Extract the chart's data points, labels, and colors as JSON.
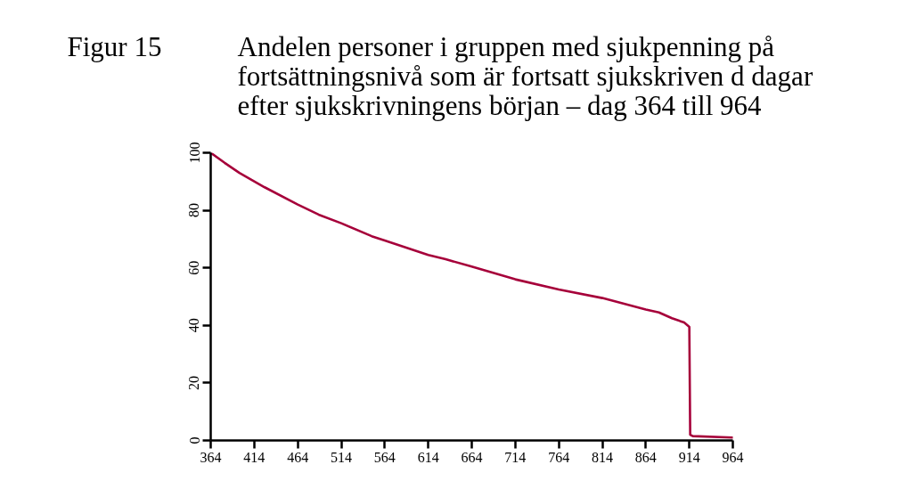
{
  "chart_data": {
    "type": "line",
    "title": "Andelen personer i gruppen med sjukpenning på fortsättningsnivå som är fortsatt sjukskriven d dagar efter sjukskrivningens början – dag 364 till 964",
    "annotations": [
      "Figur 15"
    ],
    "x": [
      364,
      380,
      397,
      426,
      464,
      488,
      514,
      549,
      564,
      614,
      634,
      663,
      714,
      764,
      814,
      864,
      879,
      894,
      908,
      914,
      915,
      918,
      964
    ],
    "series": [
      {
        "color": "#a6003a",
        "values": [
          100,
          96.5,
          93,
          88,
          82,
          78.5,
          75.5,
          71,
          69.5,
          64.5,
          63,
          60.5,
          56,
          52.5,
          49.5,
          45.5,
          44.5,
          42.5,
          41,
          39.5,
          2,
          1.5,
          1
        ]
      }
    ],
    "xlim": [
      364,
      964
    ],
    "ylim": [
      0,
      100
    ],
    "xticks": [
      364,
      414,
      464,
      514,
      564,
      614,
      664,
      714,
      764,
      814,
      864,
      914,
      964
    ],
    "yticks": [
      0,
      20,
      40,
      60,
      80,
      100
    ],
    "grid": false,
    "line_style": "solid"
  }
}
